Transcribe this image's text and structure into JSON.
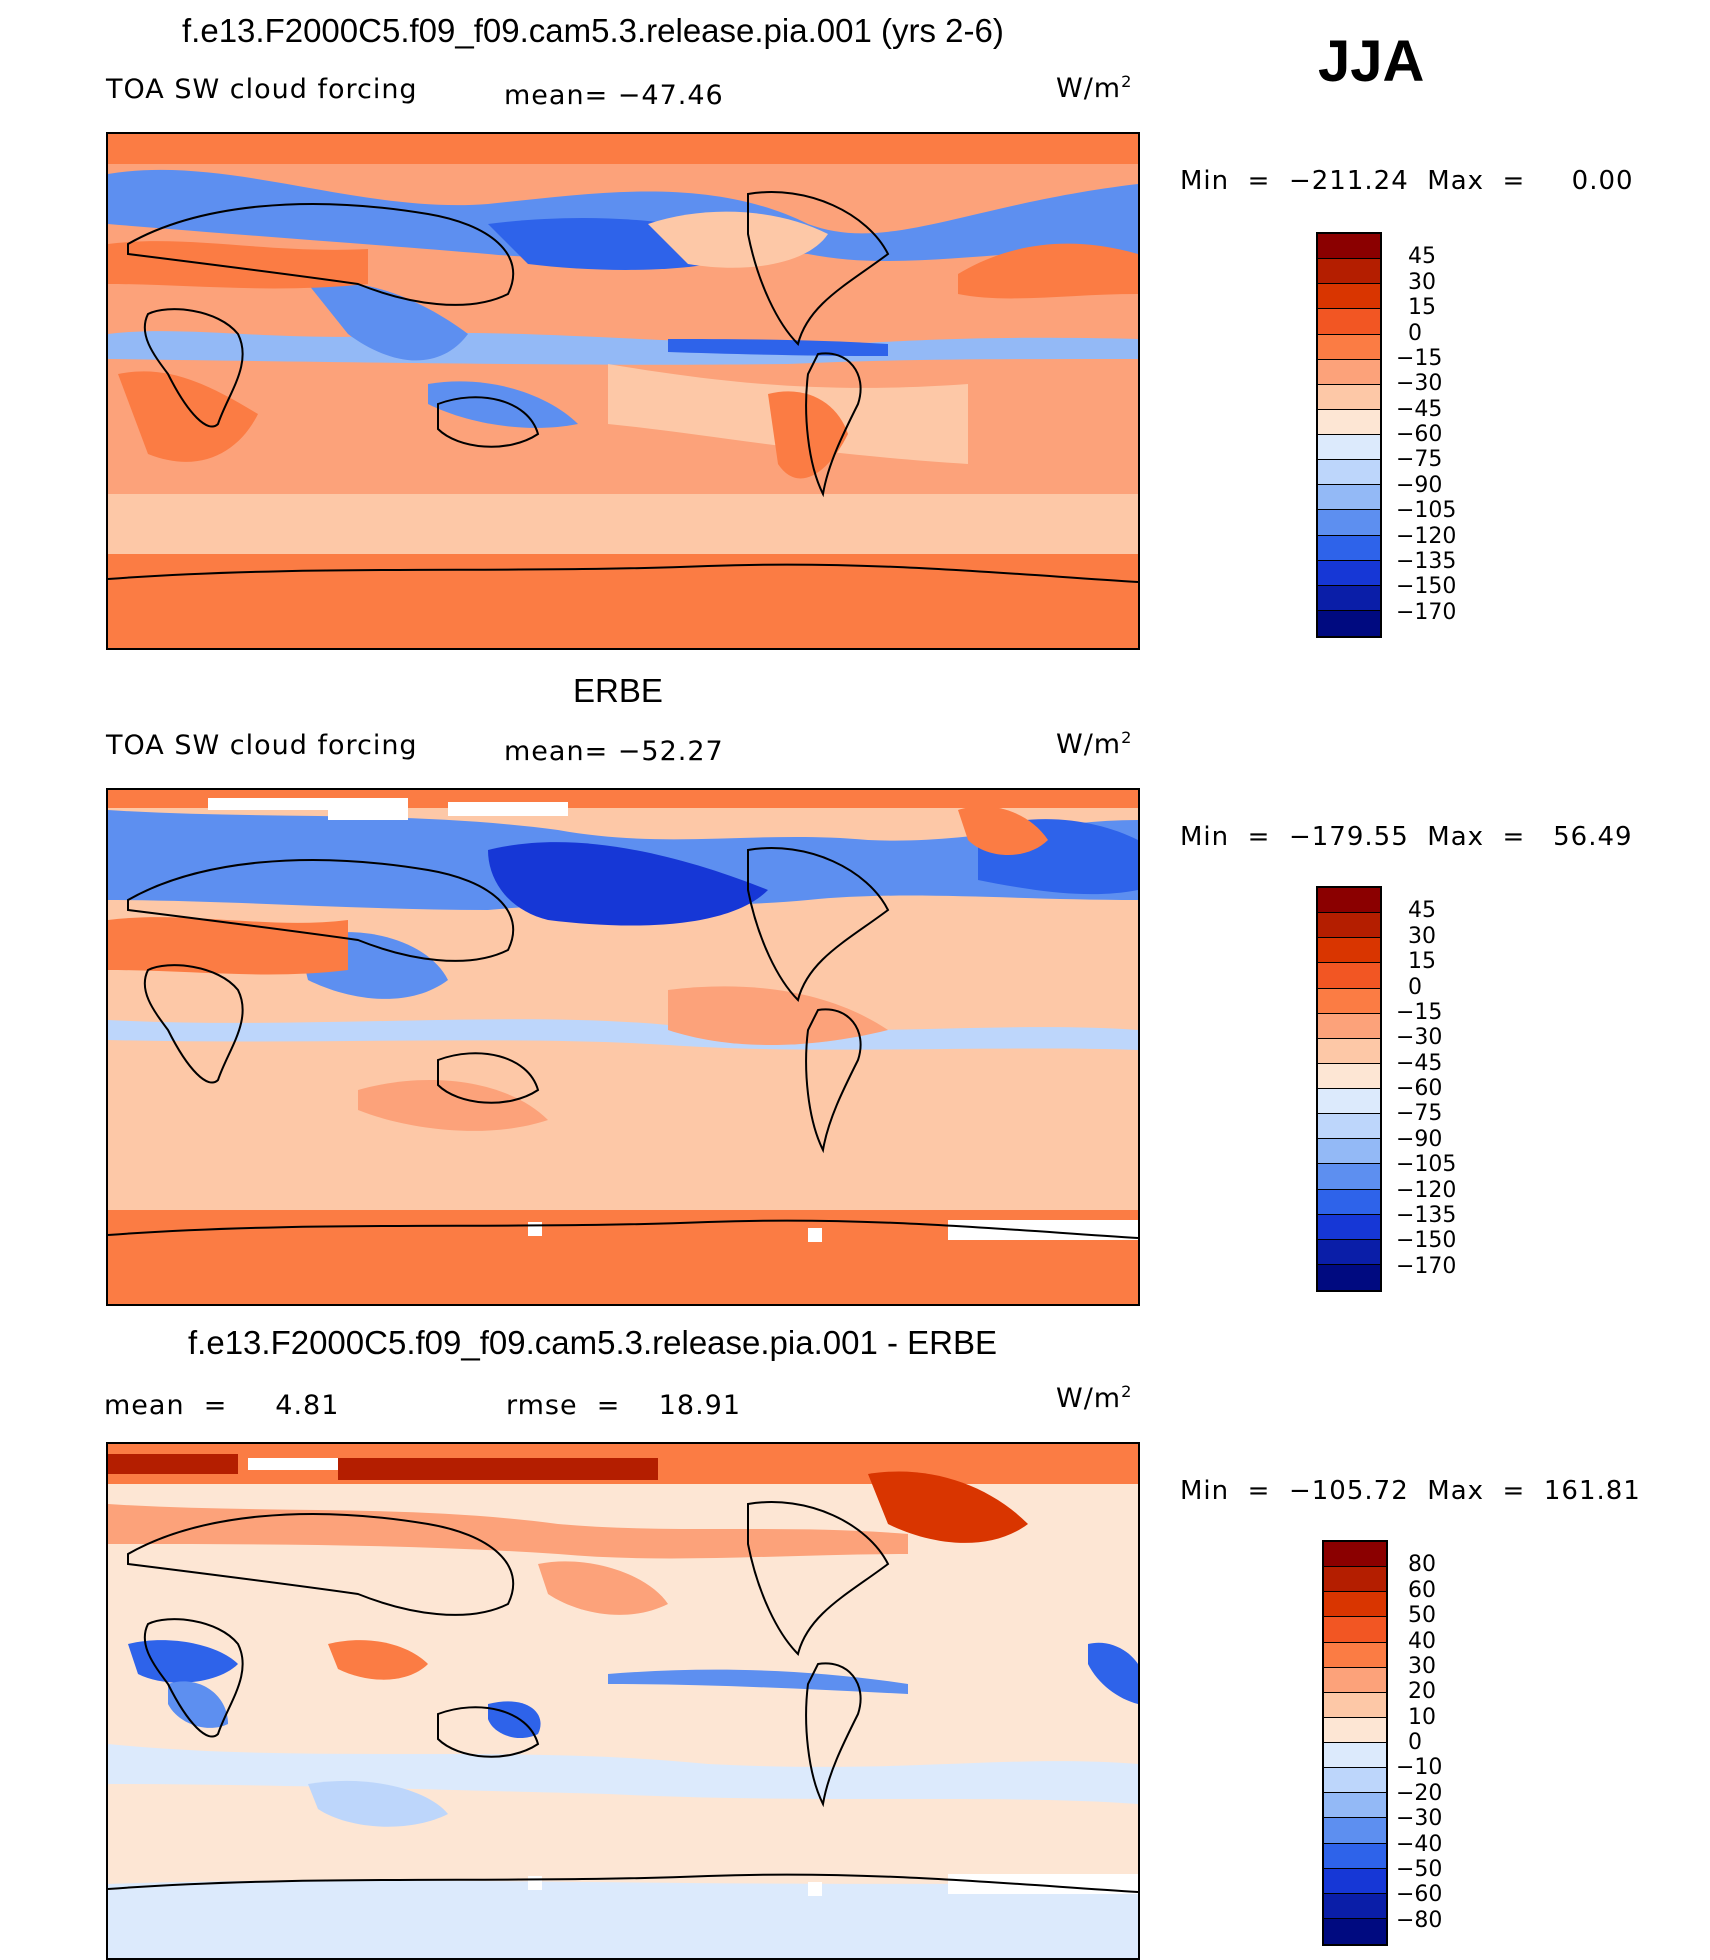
{
  "season": "JJA",
  "units_base": "W/m",
  "units_exp": "2",
  "panels": [
    {
      "title": "f.e13.F2000C5.f09_f09.cam5.3.release.pia.001 (yrs 2-6)",
      "left_label": "TOA SW cloud forcing",
      "center_label": "mean= −47.46",
      "minmax": "Min  =  −211.24  Max  =     0.00",
      "colorbar_labels": [
        "45",
        "30",
        "15",
        "0",
        "−15",
        "−30",
        "−45",
        "−60",
        "−75",
        "−90",
        "−105",
        "−120",
        "−135",
        "−150",
        "−170"
      ],
      "colorbar_colors": [
        "#8b0000",
        "#b41e00",
        "#d93500",
        "#f25623",
        "#fb7c44",
        "#fca27a",
        "#fdc8a7",
        "#fde6d4",
        "#dceafc",
        "#bdd6fb",
        "#93b9f6",
        "#5d8ff0",
        "#2e63ea",
        "#1637d6",
        "#0a1ea8",
        "#000a80"
      ]
    },
    {
      "title": "ERBE",
      "left_label": "TOA SW cloud forcing",
      "center_label": "mean= −52.27",
      "minmax": "Min  =  −179.55  Max  =   56.49",
      "colorbar_labels": [
        "45",
        "30",
        "15",
        "0",
        "−15",
        "−30",
        "−45",
        "−60",
        "−75",
        "−90",
        "−105",
        "−120",
        "−135",
        "−150",
        "−170"
      ],
      "colorbar_colors": [
        "#8b0000",
        "#b41e00",
        "#d93500",
        "#f25623",
        "#fb7c44",
        "#fca27a",
        "#fdc8a7",
        "#fde6d4",
        "#dceafc",
        "#bdd6fb",
        "#93b9f6",
        "#5d8ff0",
        "#2e63ea",
        "#1637d6",
        "#0a1ea8",
        "#000a80"
      ]
    },
    {
      "title": "f.e13.F2000C5.f09_f09.cam5.3.release.pia.001 - ERBE",
      "left_label": "mean  =     4.81",
      "center_label": "rmse  =    18.91",
      "minmax": "Min  =  −105.72  Max  =  161.81",
      "colorbar_labels": [
        "80",
        "60",
        "50",
        "40",
        "30",
        "20",
        "10",
        "0",
        "−10",
        "−20",
        "−30",
        "−40",
        "−50",
        "−60",
        "−80"
      ],
      "colorbar_colors": [
        "#8b0000",
        "#b41e00",
        "#d93500",
        "#f25623",
        "#fb7c44",
        "#fca27a",
        "#fdc8a7",
        "#fde6d4",
        "#dceafc",
        "#bdd6fb",
        "#93b9f6",
        "#5d8ff0",
        "#2e63ea",
        "#1637d6",
        "#0a1ea8",
        "#000a80"
      ]
    }
  ]
}
